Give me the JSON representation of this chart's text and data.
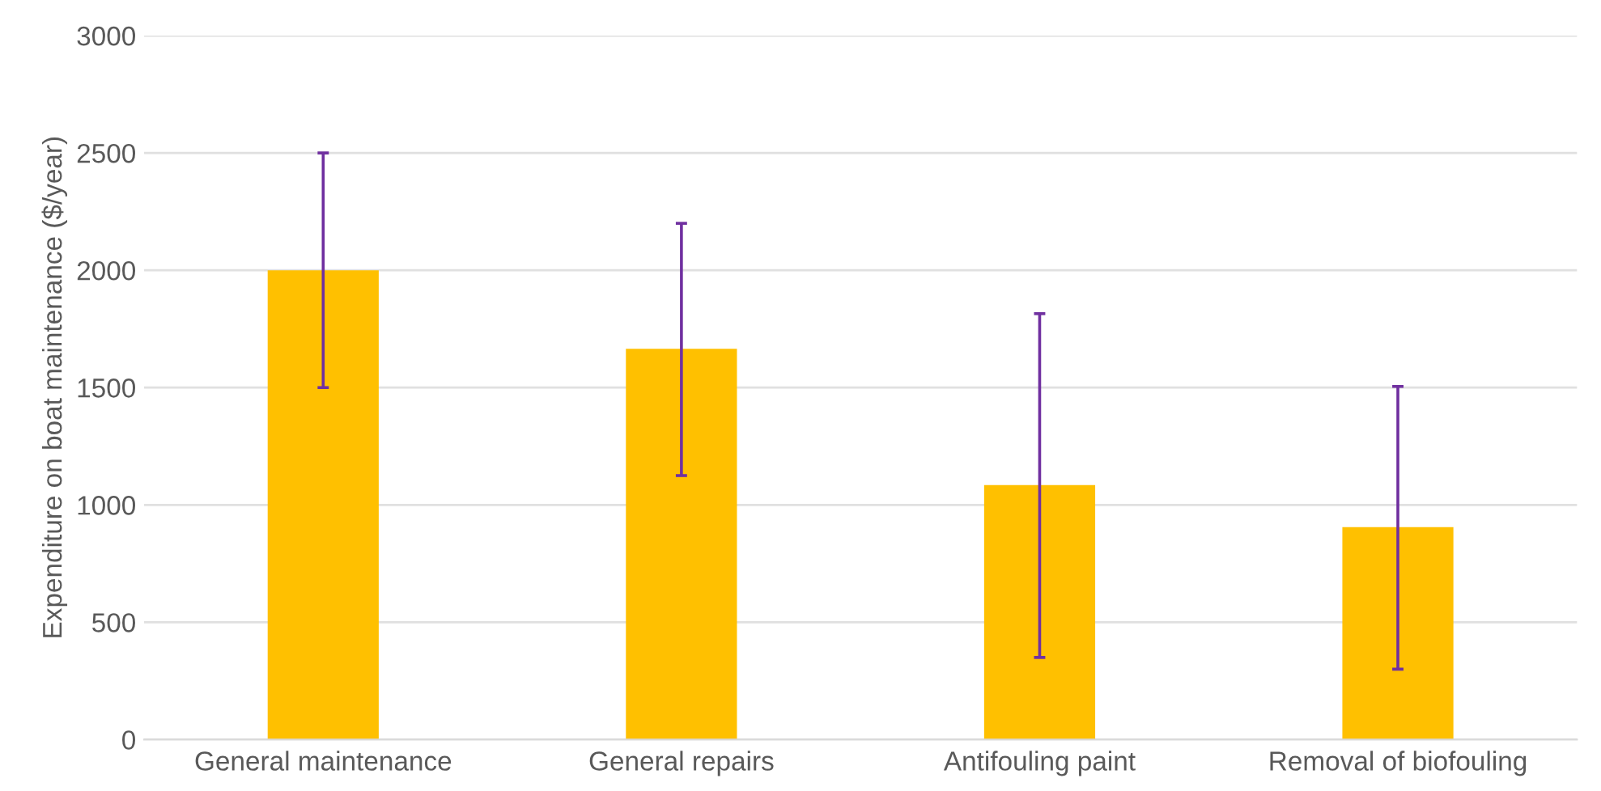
{
  "chart_data": {
    "type": "bar",
    "ylabel": "Expenditure on boat maintenance ($/year)",
    "categories": [
      "General maintenance",
      "General repairs",
      "Antifouling paint",
      "Removal of biofouling"
    ],
    "values": [
      2000,
      1665,
      1085,
      905
    ],
    "errors": [
      [
        1500,
        2500
      ],
      [
        1125,
        2200
      ],
      [
        350,
        1815
      ],
      [
        300,
        1505
      ]
    ],
    "color": "#ffc000",
    "ylim": [
      0,
      3000
    ],
    "yticks": [
      0,
      500,
      1000,
      1500,
      2000,
      2500,
      3000
    ],
    "grid": "y"
  }
}
